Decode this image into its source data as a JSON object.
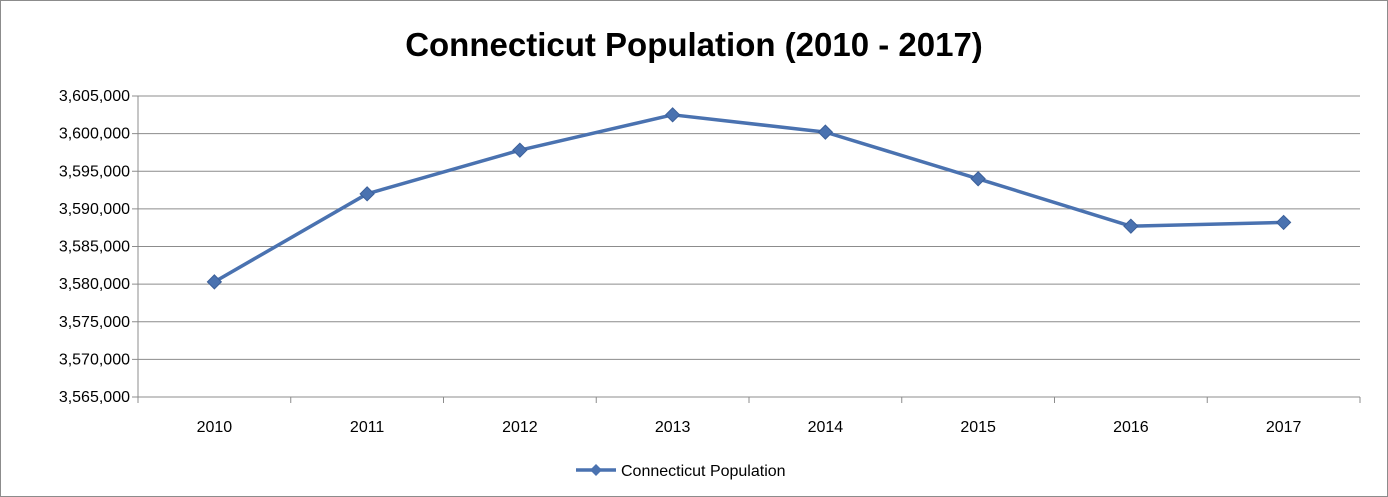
{
  "chart_data": {
    "type": "line",
    "title": "Connecticut Population (2010 - 2017)",
    "xlabel": "",
    "ylabel": "",
    "categories": [
      "2010",
      "2011",
      "2012",
      "2013",
      "2014",
      "2015",
      "2016",
      "2017"
    ],
    "series": [
      {
        "name": "Connecticut Population",
        "values": [
          3580300,
          3592000,
          3597800,
          3602500,
          3600200,
          3594000,
          3587700,
          3588200
        ],
        "color": "#4a72b0"
      }
    ],
    "ylim": [
      3565000,
      3605000
    ],
    "yticks": [
      3565000,
      3570000,
      3575000,
      3580000,
      3585000,
      3590000,
      3595000,
      3600000,
      3605000
    ],
    "ytick_labels": [
      "3,565,000",
      "3,570,000",
      "3,575,000",
      "3,580,000",
      "3,585,000",
      "3,590,000",
      "3,595,000",
      "3,600,000",
      "3,605,000"
    ],
    "grid": true,
    "legend_position": "bottom",
    "marker": "diamond"
  }
}
